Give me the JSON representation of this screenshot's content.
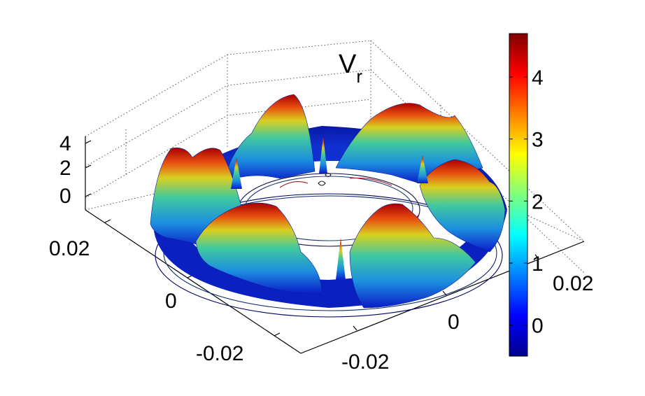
{
  "chart_data": {
    "type": "surface3d",
    "title": "V",
    "title_subscript": "r",
    "z_ticks": [
      "0",
      "2",
      "4"
    ],
    "x_ticks": [
      "-0.02",
      "0",
      "0.02"
    ],
    "y_ticks": [
      "-0.02",
      "0",
      "0.02"
    ],
    "colorbar": {
      "ticks": [
        "0",
        "1",
        "2",
        "3",
        "4"
      ],
      "range": [
        -0.5,
        4.7
      ],
      "colormap": "jet"
    },
    "grid": true,
    "description_of_shape": "annular surface with eight peaks",
    "peaks": {
      "count": 8,
      "approx_max": 4.6,
      "approx_min": -0.5
    }
  }
}
